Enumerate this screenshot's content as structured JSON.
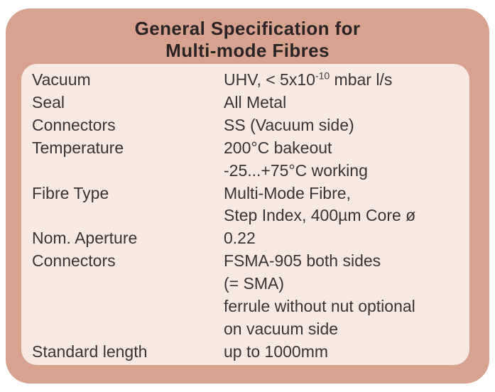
{
  "card": {
    "title_line1": "General Specification for",
    "title_line2": "Multi-mode Fibres"
  },
  "colors": {
    "outer_bg": "#d8a290",
    "inner_bg": "#f8e9e2",
    "title_color": "#2a2425",
    "body_color": "#3a3334",
    "page_bg": "#ffffff"
  },
  "table": {
    "rows": [
      {
        "label": "Vacuum",
        "value_pre": "UHV, < 5x10",
        "value_sup": "-10",
        "value_post": " mbar l/s"
      },
      {
        "label": "Seal",
        "value": "All Metal"
      },
      {
        "label": "Connectors",
        "value": "SS (Vacuum side)"
      },
      {
        "label": "Temperature",
        "value": "200°C bakeout"
      },
      {
        "label": "",
        "value": "-25...+75°C working"
      },
      {
        "label": "Fibre Type",
        "value": "Multi-Mode Fibre,"
      },
      {
        "label": "",
        "value": "Step Index, 400µm Core ø"
      },
      {
        "label": "Nom. Aperture",
        "value": "0.22"
      },
      {
        "label": "Connectors",
        "value": "FSMA-905 both sides"
      },
      {
        "label": "",
        "value": "(= SMA)"
      },
      {
        "label": "",
        "value": "ferrule without nut optional"
      },
      {
        "label": "",
        "value": "on vacuum side"
      },
      {
        "label": "Standard length",
        "value": "up to 1000mm"
      }
    ]
  }
}
